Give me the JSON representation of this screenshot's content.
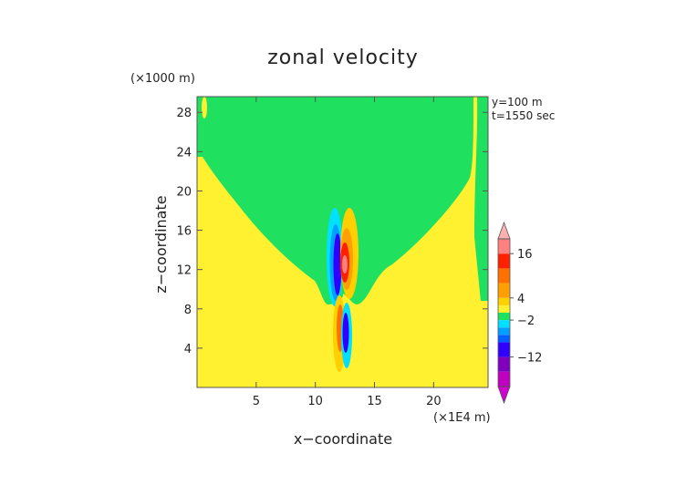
{
  "chart_data": {
    "type": "heatmap",
    "title": "zonal velocity",
    "xlabel": "x−coordinate",
    "ylabel": "z−coordinate",
    "x_unit": "(×1E4 m)",
    "y_unit": "(×1000 m)",
    "annotations": [
      "y=100 m",
      "t=1550 sec"
    ],
    "xlim": [
      0,
      24.6
    ],
    "ylim": [
      0,
      29.6
    ],
    "x_ticks": [
      5,
      10,
      15,
      20
    ],
    "y_ticks": [
      4,
      8,
      12,
      16,
      20,
      24,
      28
    ],
    "legend_position": "right",
    "colorbar": {
      "labels": [
        16,
        4,
        -2,
        -12
      ],
      "range": [
        -20,
        20
      ],
      "levels": [
        {
          "from": -20,
          "to": -16,
          "color": "#c000c0"
        },
        {
          "from": -16,
          "to": -12,
          "color": "#8000c0"
        },
        {
          "from": -12,
          "to": -8,
          "color": "#3000ff"
        },
        {
          "from": -8,
          "to": -6,
          "color": "#0060ff"
        },
        {
          "from": -6,
          "to": -4,
          "color": "#00a0ff"
        },
        {
          "from": -4,
          "to": -2,
          "color": "#00e0ff"
        },
        {
          "from": -2,
          "to": 0,
          "color": "#20e060"
        },
        {
          "from": 0,
          "to": 2,
          "color": "#fff030"
        },
        {
          "from": 2,
          "to": 4,
          "color": "#ffd000"
        },
        {
          "from": 4,
          "to": 8,
          "color": "#ffa000"
        },
        {
          "from": 8,
          "to": 12,
          "color": "#ff7000"
        },
        {
          "from": 12,
          "to": 16,
          "color": "#ff2000"
        },
        {
          "from": 16,
          "to": 20,
          "color": "#ff8080"
        }
      ],
      "arrow_high_color": "#ffb0b0",
      "arrow_low_color": "#d000d0"
    },
    "regions": [
      {
        "name": "left-background",
        "level": "0..2",
        "color": "#fff030"
      },
      {
        "name": "upper-left-wedge",
        "level": "-2..0",
        "color": "#20e060"
      },
      {
        "name": "right-background",
        "level": "-2..0",
        "color": "#20e060"
      },
      {
        "name": "lower-right-wedge",
        "level": "0..2",
        "color": "#fff030"
      }
    ],
    "features": [
      {
        "name": "negative-core-upper",
        "x": 12.0,
        "z": 13.5,
        "min": -12
      },
      {
        "name": "positive-core-upper",
        "x": 12.7,
        "z": 13.0,
        "max": 16
      },
      {
        "name": "positive-core-lower",
        "x": 12.1,
        "z": 6.5,
        "max": 12
      },
      {
        "name": "negative-core-lower",
        "x": 12.7,
        "z": 6.3,
        "min": -8
      }
    ]
  }
}
